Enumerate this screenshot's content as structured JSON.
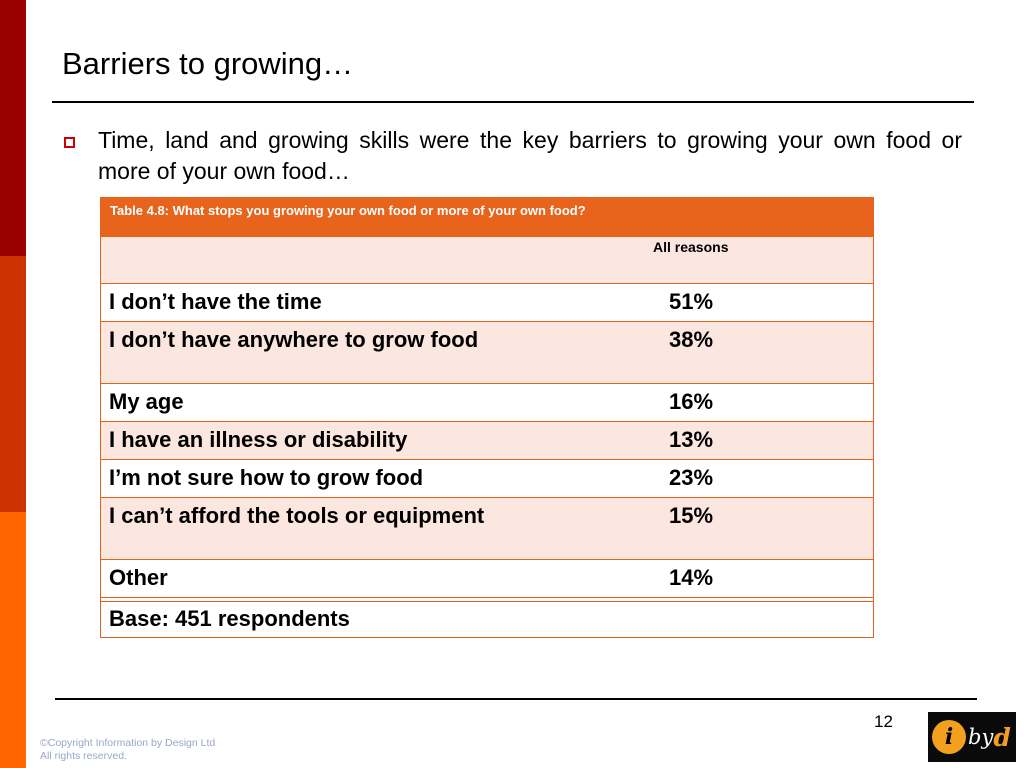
{
  "slide": {
    "title": "Barriers to growing…",
    "bullet": "Time, land and growing skills were the key barriers to growing your own food or more of your own food…",
    "page_number": "12",
    "copyright_line1": "©Copyright Information by Design Ltd",
    "copyright_line2": "All rights reserved.",
    "logo": {
      "i": "i",
      "by": "by",
      "d": "d"
    }
  },
  "table": {
    "caption": "Table 4.8:  What stops you growing your own food or more of your own food?",
    "column_header": "All reasons",
    "rows": [
      {
        "label": "I don’t have the time",
        "value": "51%"
      },
      {
        "label": "I don’t have anywhere to grow food",
        "value": "38%"
      },
      {
        "label": "My age",
        "value": "16%"
      },
      {
        "label": "I have an illness or disability",
        "value": "13%"
      },
      {
        "label": "I’m not sure how to grow food",
        "value": "23%"
      },
      {
        "label": "I can’t afford the tools or equipment",
        "value": "15%"
      },
      {
        "label": "Other",
        "value": "14%"
      }
    ],
    "base": "Base:  451 respondents"
  },
  "colors": {
    "accent": "#e8641c",
    "band_dark": "#9a0000",
    "band_mid": "#cc3300",
    "band_light": "#ff6600",
    "row_shade": "#fbe6e0"
  }
}
